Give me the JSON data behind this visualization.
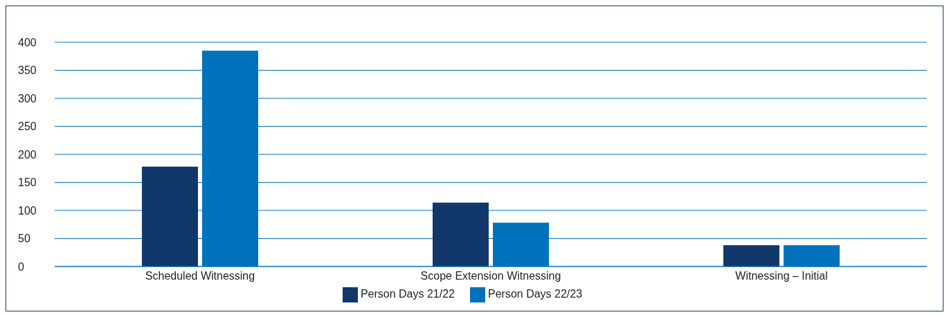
{
  "chart_data": {
    "type": "bar",
    "categories": [
      "Scheduled Witnessing",
      "Scope Extension Witnessing",
      "Witnessing – Initial"
    ],
    "series": [
      {
        "name": "Person Days 21/22",
        "color": "#12376b",
        "values": [
          178,
          114,
          38
        ]
      },
      {
        "name": "Person Days 22/23",
        "color": "#0072bc",
        "values": [
          385,
          78,
          38
        ]
      }
    ],
    "ylim": [
      0,
      400
    ],
    "yticks": [
      0,
      50,
      100,
      150,
      200,
      250,
      300,
      350,
      400
    ],
    "grid": "y",
    "legend": "bottom"
  }
}
